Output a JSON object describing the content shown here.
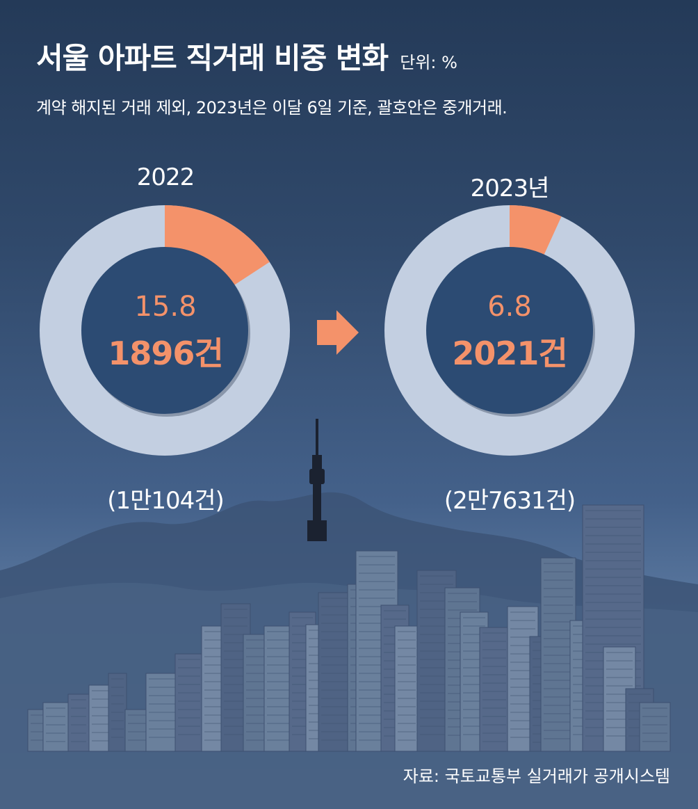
{
  "title": "서울 아파트 직거래 비중 변화",
  "unit": "단위: %",
  "subtitle": "계약 해지된 거래 제외, 2023년은 이달 6일 기준, 괄호안은 중개거래.",
  "source": "자료: 국토교통부 실거래가 공개시스템",
  "colors": {
    "highlight": "#f4926a",
    "ring": "#c3cfe1",
    "center": "#2c4b73",
    "arrow": "#f4926a"
  },
  "chart_data": [
    {
      "type": "pie",
      "year_label": "2022",
      "value": 15.8,
      "value_label": "15.8",
      "count_label": "1896건",
      "total_label": "(1만104건)"
    },
    {
      "type": "pie",
      "year_label": "2023년",
      "value": 6.8,
      "value_label": "6.8",
      "count_label": "2021건",
      "total_label": "(2만7631건)"
    }
  ]
}
